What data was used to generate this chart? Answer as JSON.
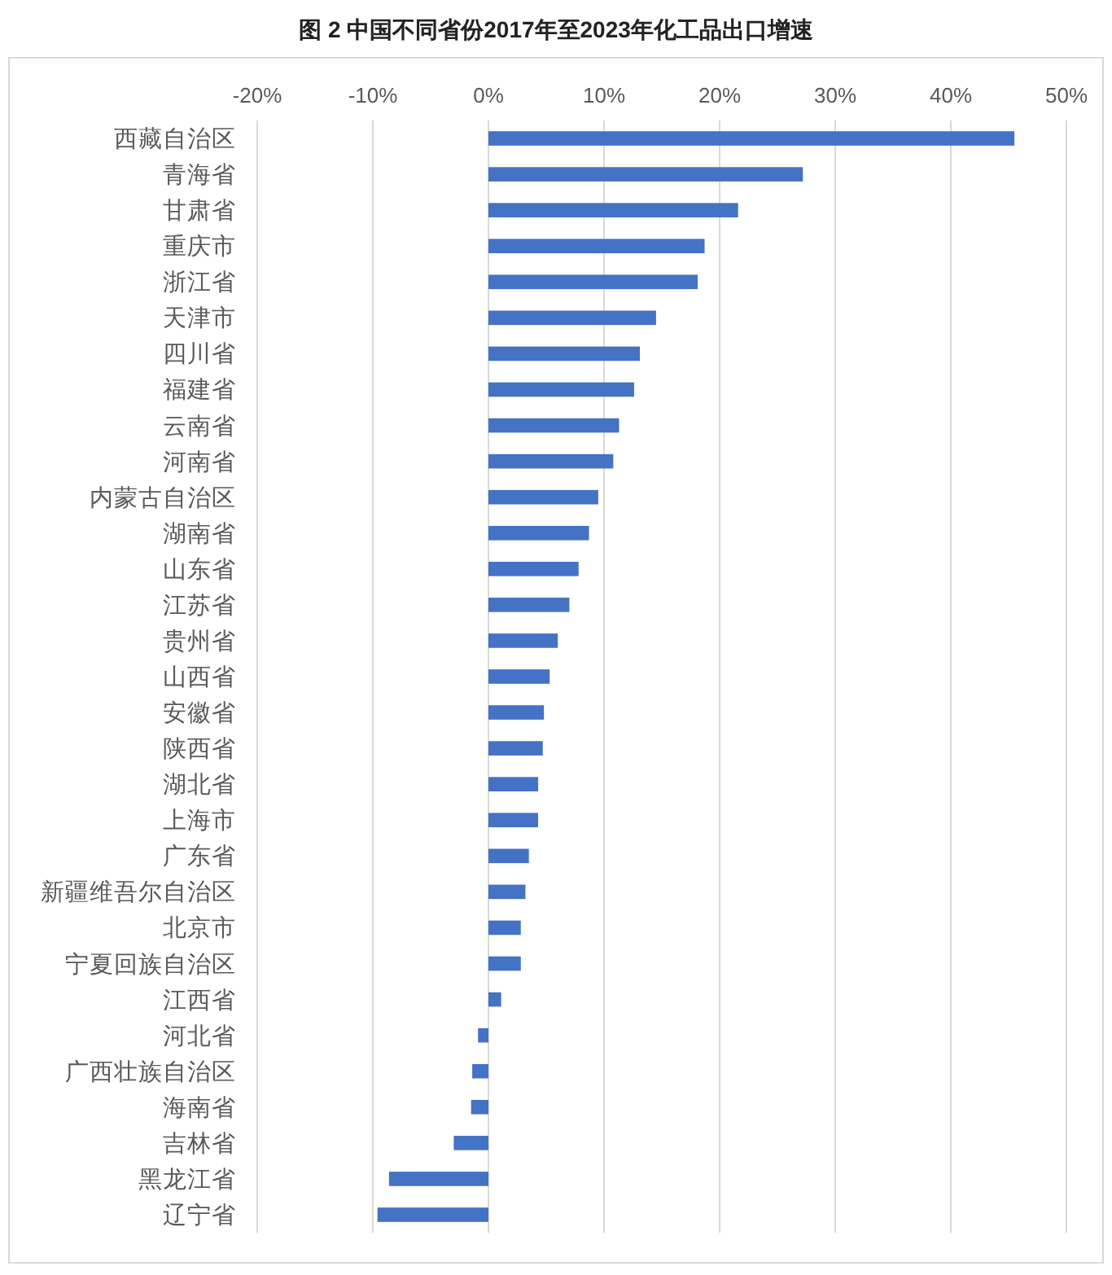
{
  "chart_data": {
    "type": "bar",
    "orientation": "horizontal",
    "title": "图 2 中国不同省份2017年至2023年化工品出口增速",
    "categories": [
      "西藏自治区",
      "青海省",
      "甘肃省",
      "重庆市",
      "浙江省",
      "天津市",
      "四川省",
      "福建省",
      "云南省",
      "河南省",
      "内蒙古自治区",
      "湖南省",
      "山东省",
      "江苏省",
      "贵州省",
      "山西省",
      "安徽省",
      "陕西省",
      "湖北省",
      "上海市",
      "广东省",
      "新疆维吾尔自治区",
      "北京市",
      "宁夏回族自治区",
      "江西省",
      "河北省",
      "广西壮族自治区",
      "海南省",
      "吉林省",
      "黑龙江省",
      "辽宁省"
    ],
    "values": [
      45.5,
      27.2,
      21.6,
      18.7,
      18.1,
      14.5,
      13.1,
      12.6,
      11.3,
      10.8,
      9.5,
      8.7,
      7.8,
      7.0,
      6.0,
      5.3,
      4.8,
      4.7,
      4.3,
      4.3,
      3.5,
      3.2,
      2.8,
      2.8,
      1.1,
      -0.9,
      -1.4,
      -1.5,
      -3.0,
      -8.6,
      -9.6
    ],
    "color": "#4472c4",
    "xlim": [
      -20,
      50
    ],
    "xticks": [
      {
        "value": -20,
        "label": "-20%"
      },
      {
        "value": -10,
        "label": "-10%"
      },
      {
        "value": 0,
        "label": "0%"
      },
      {
        "value": 10,
        "label": "10%"
      },
      {
        "value": 20,
        "label": "20%"
      },
      {
        "value": 30,
        "label": "30%"
      },
      {
        "value": 40,
        "label": "40%"
      },
      {
        "value": 50,
        "label": "50%"
      }
    ],
    "grid": "x"
  }
}
